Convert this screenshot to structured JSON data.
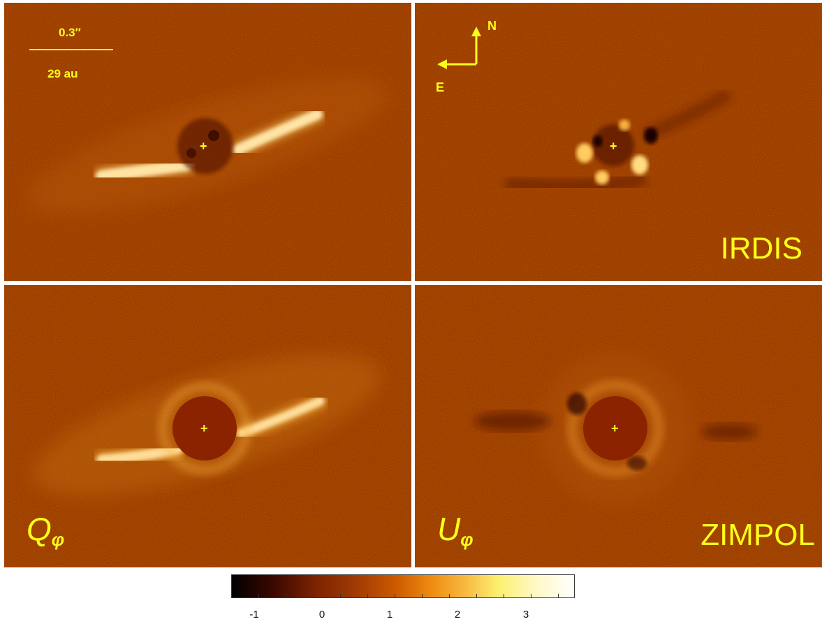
{
  "panels": {
    "top_left": {
      "scale_top": "0.3″",
      "scale_bottom": "29 au"
    },
    "top_right": {
      "compass_north": "N",
      "compass_east": "E",
      "instrument": "IRDIS"
    },
    "bottom_left": {
      "label": "Q",
      "label_sub": "φ"
    },
    "bottom_right": {
      "label": "U",
      "label_sub": "φ",
      "instrument": "ZIMPOL"
    }
  },
  "colorbar": {
    "ticks": [
      "-1",
      "0",
      "1",
      "2",
      "3"
    ]
  },
  "colors": {
    "background_map": "#9a3a00",
    "annotation_yellow": "#ffff1a"
  }
}
